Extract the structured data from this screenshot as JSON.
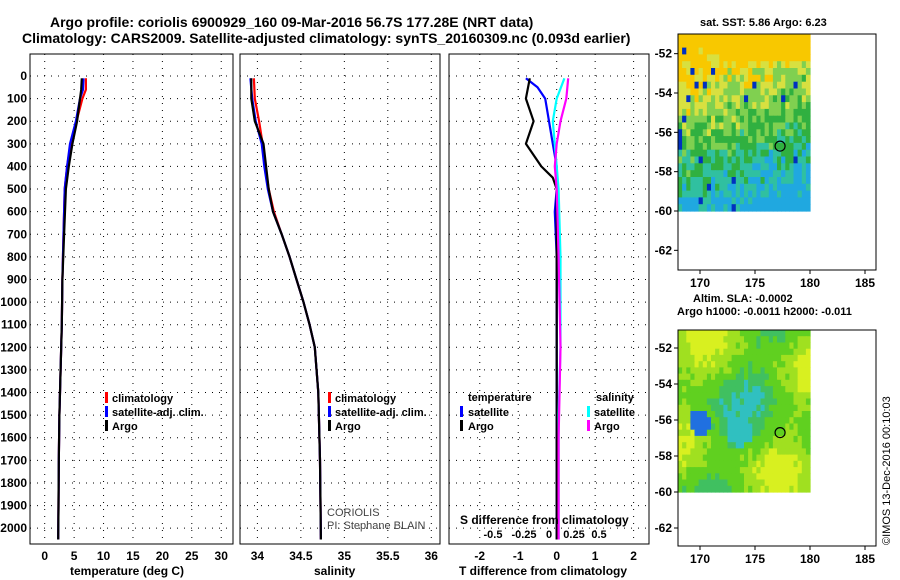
{
  "header": {
    "title_line1": "Argo profile: coriolis 6900929_160 09-Mar-2016 56.7S 177.28E (NRT data)",
    "title_line2": "Climatology: CARS2009. Satellite-adjusted climatology: synTS_20160309.nc (0.093d earlier)"
  },
  "colors": {
    "climatology": "#ff0000",
    "satellite": "#0000ff",
    "argo": "#000000",
    "sat_salinity": "#00ffff",
    "argo_salinity": "#ff00ff"
  },
  "depth_axis": {
    "ticks": [
      "0",
      "100",
      "200",
      "300",
      "400",
      "500",
      "600",
      "700",
      "800",
      "900",
      "1000",
      "1100",
      "1200",
      "1300",
      "1400",
      "1500",
      "1600",
      "1700",
      "1800",
      "1900",
      "2000"
    ],
    "range": [
      0,
      2070
    ]
  },
  "chart_data": [
    {
      "type": "line",
      "id": "temperature",
      "xlabel": "temperature (deg C)",
      "xticks": [
        "0",
        "5",
        "10",
        "15",
        "20",
        "25",
        "30"
      ],
      "xlim": [
        -2.5,
        32
      ],
      "ylim": [
        0,
        2070
      ],
      "legend": [
        "climatology",
        "satellite-adj. clim.",
        "Argo"
      ],
      "series": [
        {
          "name": "climatology",
          "color": "#ff0000",
          "x": [
            7.0,
            7.0,
            6.4,
            5.4,
            4.4,
            3.8,
            3.4,
            3.2,
            3.0,
            2.9,
            2.7,
            2.5,
            2.4,
            2.35,
            2.3
          ],
          "y": [
            10,
            60,
            100,
            200,
            300,
            400,
            500,
            700,
            900,
            1100,
            1300,
            1500,
            1700,
            1900,
            2050
          ]
        },
        {
          "name": "satellite-adj. clim.",
          "color": "#0000ff",
          "x": [
            6.6,
            6.5,
            6.0,
            5.3,
            4.3,
            3.8,
            3.4,
            3.2,
            3.0,
            2.9,
            2.7,
            2.5,
            2.4,
            2.35,
            2.3
          ],
          "y": [
            10,
            60,
            100,
            200,
            300,
            400,
            500,
            700,
            900,
            1100,
            1300,
            1500,
            1700,
            1900,
            2050
          ]
        },
        {
          "name": "Argo",
          "color": "#000000",
          "x": [
            6.3,
            6.2,
            6.0,
            5.5,
            4.7,
            4.1,
            3.6,
            3.3,
            3.0,
            2.9,
            2.7,
            2.5,
            2.4,
            2.35,
            2.3
          ],
          "y": [
            10,
            60,
            100,
            200,
            300,
            400,
            500,
            700,
            900,
            1100,
            1300,
            1500,
            1700,
            1900,
            2050
          ]
        }
      ]
    },
    {
      "type": "line",
      "id": "salinity",
      "xlabel": "salinity",
      "xticks": [
        "34",
        "34.5",
        "35",
        "35.5",
        "36"
      ],
      "xlim": [
        33.8,
        36.1
      ],
      "ylim": [
        0,
        2070
      ],
      "legend": [
        "climatology",
        "satellite-adj. clim.",
        "Argo"
      ],
      "annotations": [
        "CORIOLIS",
        "PI: Stephane BLAIN"
      ],
      "series": [
        {
          "name": "climatology",
          "color": "#ff0000",
          "x": [
            33.96,
            33.97,
            34.02,
            34.06,
            34.09,
            34.13,
            34.19,
            34.28,
            34.37,
            34.45,
            34.53,
            34.6,
            34.66,
            34.7,
            34.72,
            34.73
          ],
          "y": [
            10,
            100,
            200,
            300,
            400,
            500,
            600,
            700,
            800,
            900,
            1000,
            1100,
            1200,
            1400,
            1700,
            2050
          ]
        },
        {
          "name": "satellite-adj. clim.",
          "color": "#0000ff",
          "x": [
            33.92,
            33.94,
            33.98,
            34.05,
            34.08,
            34.12,
            34.18,
            34.28,
            34.37,
            34.45,
            34.53,
            34.6,
            34.66,
            34.7,
            34.72,
            34.73
          ],
          "y": [
            10,
            100,
            200,
            300,
            400,
            500,
            600,
            700,
            800,
            900,
            1000,
            1100,
            1200,
            1400,
            1700,
            2050
          ]
        },
        {
          "name": "Argo",
          "color": "#000000",
          "x": [
            33.93,
            33.93,
            33.97,
            34.07,
            34.1,
            34.13,
            34.18,
            34.28,
            34.37,
            34.45,
            34.53,
            34.6,
            34.66,
            34.7,
            34.72,
            34.73
          ],
          "y": [
            10,
            100,
            200,
            300,
            400,
            500,
            600,
            700,
            800,
            900,
            1000,
            1100,
            1200,
            1400,
            1700,
            2050
          ]
        }
      ]
    },
    {
      "type": "line",
      "id": "difference",
      "xlabel": "T difference from climatology",
      "xlabel_top": "S difference from climatology",
      "xticks": [
        "-2",
        "-1",
        "0",
        "1",
        "2"
      ],
      "xlim": [
        -2.8,
        2.4
      ],
      "xticks_s": [
        "-0.5",
        "-0.25",
        "0",
        "0.25",
        "0.5"
      ],
      "legend_headers": [
        "temperature",
        "salinity"
      ],
      "legend": [
        "satellite",
        "Argo",
        "satellite",
        "Argo"
      ],
      "ylim": [
        0,
        2070
      ],
      "series": [
        {
          "name": "temperature satellite",
          "color": "#0000ff",
          "x": [
            -0.8,
            -0.5,
            -0.3,
            -0.2,
            -0.1,
            0,
            0,
            -0.05,
            0,
            0,
            0,
            0
          ],
          "y": [
            10,
            50,
            100,
            200,
            300,
            400,
            500,
            600,
            800,
            1200,
            1600,
            2050
          ]
        },
        {
          "name": "temperature Argo",
          "color": "#000000",
          "x": [
            -0.7,
            -0.8,
            -0.6,
            -0.8,
            -0.4,
            -0.1,
            0,
            0,
            0,
            0,
            0,
            0
          ],
          "y": [
            10,
            100,
            200,
            300,
            400,
            450,
            500,
            600,
            800,
            1200,
            1600,
            2050
          ]
        },
        {
          "name": "salinity satellite",
          "color": "#00ffff",
          "x": [
            0.2,
            0,
            -0.1,
            -0.05,
            0,
            0.05,
            0.1,
            0.1,
            0.05,
            0.05,
            0.05
          ],
          "y": [
            10,
            100,
            200,
            300,
            400,
            500,
            800,
            1200,
            1500,
            1800,
            2050
          ]
        },
        {
          "name": "salinity Argo",
          "color": "#ff00ff",
          "x": [
            0.3,
            0.25,
            0.1,
            0,
            -0.05,
            0,
            0.05,
            0.1,
            0.05,
            0.05
          ],
          "y": [
            10,
            100,
            200,
            300,
            400,
            500,
            800,
            1200,
            1600,
            2050
          ]
        }
      ]
    }
  ],
  "sst_map": {
    "title": "sat. SST: 5.86 Argo: 6.23",
    "lat_ticks": [
      "-52",
      "-54",
      "-56",
      "-58",
      "-60",
      "-62"
    ],
    "lon_ticks": [
      "170",
      "175",
      "180",
      "185"
    ],
    "lat_range": [
      -63,
      -51
    ],
    "lon_range": [
      168,
      186
    ],
    "data_lon": [
      168,
      180
    ],
    "data_lat": [
      -60,
      -51
    ],
    "marker": {
      "lon": 177.28,
      "lat": -56.7
    }
  },
  "sla_map": {
    "title1": "Altim. SLA: -0.0002",
    "title2": "Argo h1000: -0.0011 h2000: -0.011",
    "lat_ticks": [
      "-52",
      "-54",
      "-56",
      "-58",
      "-60",
      "-62"
    ],
    "lon_ticks": [
      "170",
      "175",
      "180",
      "185"
    ],
    "lat_range": [
      -63,
      -51
    ],
    "lon_range": [
      168,
      186
    ],
    "data_lon": [
      168,
      180
    ],
    "data_lat": [
      -60,
      -51
    ],
    "marker": {
      "lon": 177.28,
      "lat": -56.7
    }
  },
  "credit": "©IMOS 13-Dec-2016 00:10:03"
}
